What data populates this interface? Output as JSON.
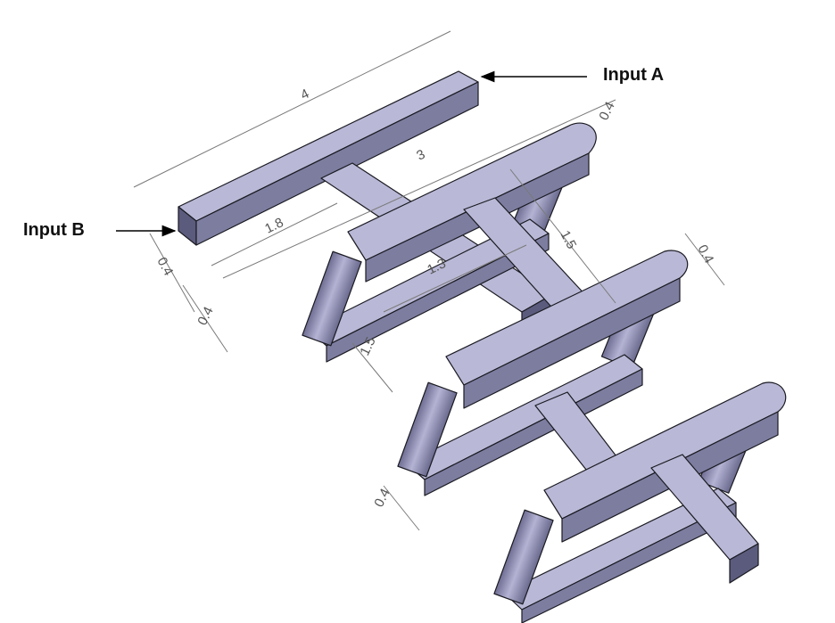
{
  "labels": {
    "input_a": "Input A",
    "input_b": "Input B"
  },
  "dimensions": {
    "top_length": "4",
    "inner_length": "3",
    "left_offset": "1.8",
    "mid_width": "1.3",
    "loop_depth": "1.5",
    "top_thickness": "0.4",
    "right_thickness": "0.4",
    "bar_width_a": "0.4",
    "bar_width_b": "0.4",
    "lower_left": "1.5",
    "bottom_width": "0.4"
  },
  "colors": {
    "top_face": "#b9b8d6",
    "side_face": "#7d7da0",
    "dark_face": "#5b5b7d",
    "cylinder": "#9a99bd",
    "edge": "#1a1a22",
    "dimension": "#7a7a7a"
  }
}
